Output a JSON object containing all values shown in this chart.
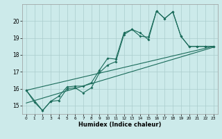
{
  "title": "",
  "xlabel": "Humidex (Indice chaleur)",
  "bg_color": "#cceaea",
  "grid_color": "#aacccc",
  "line_color": "#1a6b5a",
  "xlim": [
    -0.5,
    23.5
  ],
  "ylim": [
    14.5,
    21.0
  ],
  "yticks": [
    15,
    16,
    17,
    18,
    19,
    20
  ],
  "xticks": [
    0,
    1,
    2,
    3,
    4,
    5,
    6,
    7,
    8,
    9,
    10,
    11,
    12,
    13,
    14,
    15,
    16,
    17,
    18,
    19,
    20,
    21,
    22,
    23
  ],
  "line1_x": [
    0,
    1,
    2,
    3,
    4,
    5,
    6,
    7,
    8,
    9,
    10,
    11,
    12,
    13,
    14,
    15,
    16,
    17,
    18,
    19,
    20,
    21,
    22,
    23
  ],
  "line1_y": [
    15.9,
    15.2,
    14.7,
    15.25,
    15.3,
    16.0,
    16.05,
    15.75,
    16.05,
    16.95,
    17.4,
    17.6,
    19.2,
    19.5,
    19.3,
    18.9,
    20.6,
    20.15,
    20.55,
    19.1,
    18.5,
    18.5,
    18.5,
    18.5
  ],
  "line2_x": [
    0,
    2,
    3,
    4,
    5,
    6,
    7,
    8,
    9,
    10,
    11,
    12,
    13,
    14,
    15,
    16,
    17,
    18,
    19,
    20,
    21,
    22,
    23
  ],
  "line2_y": [
    15.9,
    14.7,
    15.25,
    15.55,
    16.1,
    16.15,
    16.15,
    16.35,
    17.1,
    17.8,
    17.75,
    19.3,
    19.5,
    19.1,
    19.05,
    20.6,
    20.15,
    20.55,
    19.1,
    18.5,
    18.5,
    18.5,
    18.5
  ],
  "line3_x": [
    0,
    23
  ],
  "line3_y": [
    15.9,
    18.5
  ],
  "line4_x": [
    0,
    23
  ],
  "line4_y": [
    15.15,
    18.45
  ]
}
